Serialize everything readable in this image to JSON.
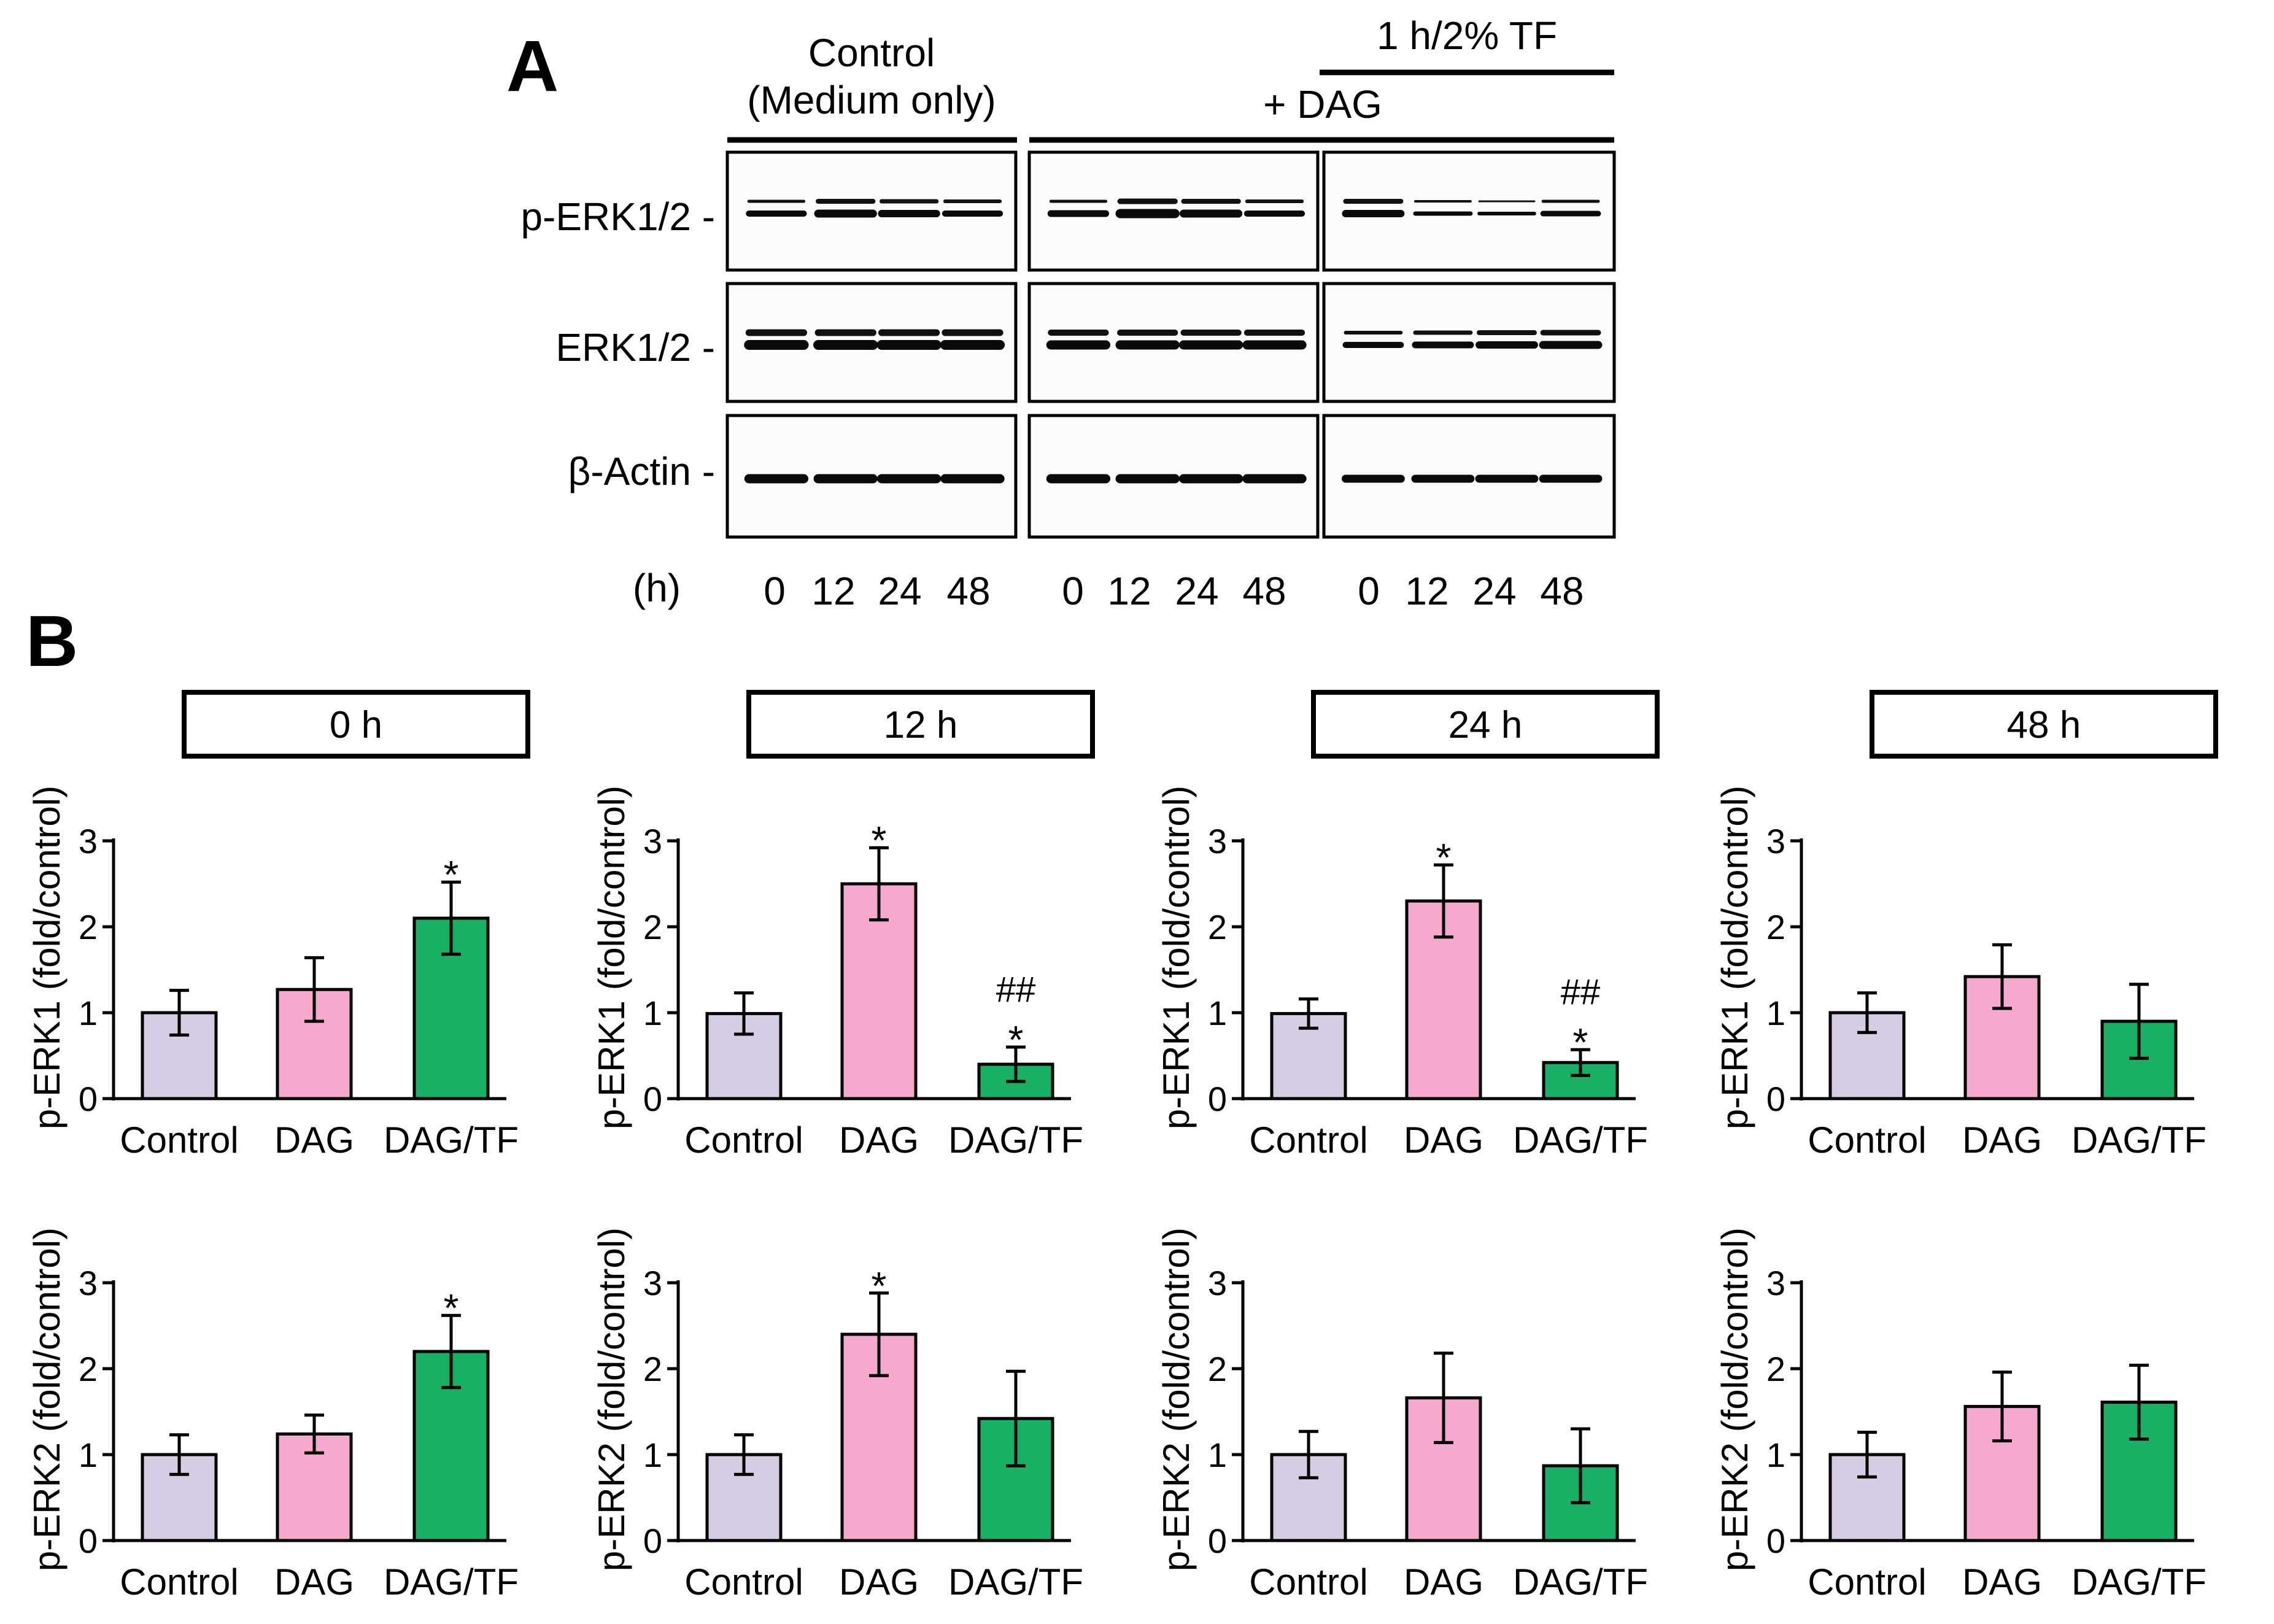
{
  "panel_a": {
    "label": "A",
    "header": {
      "control_line1": "Control",
      "control_line2": "(Medium only)",
      "tf_label": "1 h/2% TF",
      "dag_label": "+ DAG"
    },
    "row_labels": [
      "p-ERK1/2 -",
      "ERK1/2 -",
      "β-Actin -"
    ],
    "time_unit": "(h)",
    "time_points": [
      "0",
      "12",
      "24",
      "48"
    ]
  },
  "panel_b": {
    "label": "B"
  },
  "colors": {
    "Control": "#d6cde4",
    "DAG": "#f6a8cf",
    "DAG/TF": "#18b065",
    "axis": "#000000"
  },
  "chart_data": [
    {
      "type": "bar",
      "title": "0 h",
      "ylabel": "p-ERK1 (fold/control)",
      "ylim": [
        0,
        3
      ],
      "yticks": [
        0,
        1,
        2,
        3
      ],
      "categories": [
        "Control",
        "DAG",
        "DAG/TF"
      ],
      "values": [
        1.0,
        1.27,
        2.1
      ],
      "errors": [
        0.26,
        0.37,
        0.42
      ],
      "annotations": [
        "",
        "",
        "*"
      ]
    },
    {
      "type": "bar",
      "title": "12 h",
      "ylabel": "p-ERK1 (fold/control)",
      "ylim": [
        0,
        3
      ],
      "yticks": [
        0,
        1,
        2,
        3
      ],
      "categories": [
        "Control",
        "DAG",
        "DAG/TF"
      ],
      "values": [
        0.99,
        2.5,
        0.4
      ],
      "errors": [
        0.24,
        0.42,
        0.2
      ],
      "annotations": [
        "",
        "*",
        "##\n*"
      ]
    },
    {
      "type": "bar",
      "title": "24 h",
      "ylabel": "p-ERK1 (fold/control)",
      "ylim": [
        0,
        3
      ],
      "yticks": [
        0,
        1,
        2,
        3
      ],
      "categories": [
        "Control",
        "DAG",
        "DAG/TF"
      ],
      "values": [
        0.99,
        2.3,
        0.42
      ],
      "errors": [
        0.17,
        0.42,
        0.15
      ],
      "annotations": [
        "",
        "*",
        "##\n*"
      ]
    },
    {
      "type": "bar",
      "title": "48 h",
      "ylabel": "p-ERK1 (fold/control)",
      "ylim": [
        0,
        3
      ],
      "yticks": [
        0,
        1,
        2,
        3
      ],
      "categories": [
        "Control",
        "DAG",
        "DAG/TF"
      ],
      "values": [
        1.0,
        1.42,
        0.9
      ],
      "errors": [
        0.23,
        0.37,
        0.43
      ],
      "annotations": [
        "",
        "",
        ""
      ]
    },
    {
      "type": "bar",
      "title": "",
      "ylabel": "p-ERK2 (fold/control)",
      "ylim": [
        0,
        3
      ],
      "yticks": [
        0,
        1,
        2,
        3
      ],
      "categories": [
        "Control",
        "DAG",
        "DAG/TF"
      ],
      "values": [
        1.0,
        1.24,
        2.2
      ],
      "errors": [
        0.23,
        0.22,
        0.42
      ],
      "annotations": [
        "",
        "",
        "*"
      ]
    },
    {
      "type": "bar",
      "title": "",
      "ylabel": "p-ERK2 (fold/control)",
      "ylim": [
        0,
        3
      ],
      "yticks": [
        0,
        1,
        2,
        3
      ],
      "categories": [
        "Control",
        "DAG",
        "DAG/TF"
      ],
      "values": [
        1.0,
        2.4,
        1.42
      ],
      "errors": [
        0.23,
        0.48,
        0.55
      ],
      "annotations": [
        "",
        "*",
        ""
      ]
    },
    {
      "type": "bar",
      "title": "",
      "ylabel": "p-ERK2 (fold/control)",
      "ylim": [
        0,
        3
      ],
      "yticks": [
        0,
        1,
        2,
        3
      ],
      "categories": [
        "Control",
        "DAG",
        "DAG/TF"
      ],
      "values": [
        1.0,
        1.66,
        0.87
      ],
      "errors": [
        0.27,
        0.52,
        0.43
      ],
      "annotations": [
        "",
        "",
        ""
      ]
    },
    {
      "type": "bar",
      "title": "",
      "ylabel": "p-ERK2 (fold/control)",
      "ylim": [
        0,
        3
      ],
      "yticks": [
        0,
        1,
        2,
        3
      ],
      "categories": [
        "Control",
        "DAG",
        "DAG/TF"
      ],
      "values": [
        1.0,
        1.56,
        1.61
      ],
      "errors": [
        0.26,
        0.4,
        0.43
      ],
      "annotations": [
        "",
        "",
        ""
      ]
    }
  ]
}
